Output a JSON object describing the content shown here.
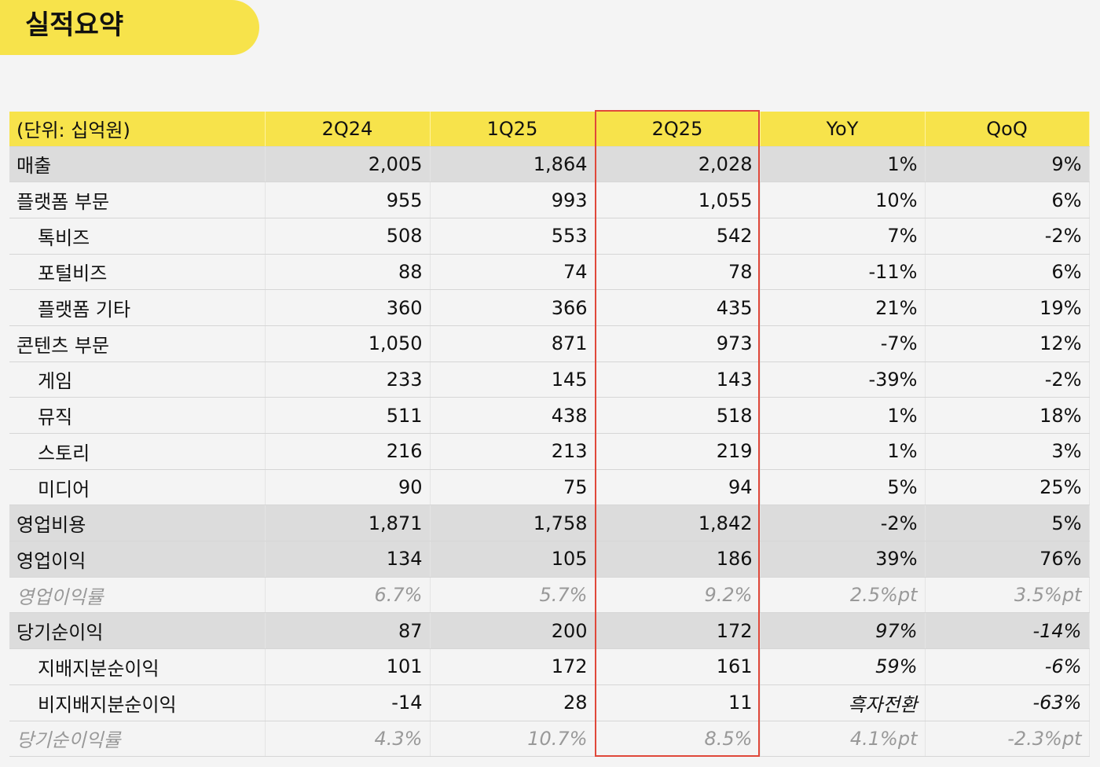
{
  "title": "실적요약",
  "table": {
    "header": [
      "(단위: 십억원)",
      "2Q24",
      "1Q25",
      "2Q25",
      "YoY",
      "QoQ"
    ],
    "rows": [
      [
        "매출",
        "2,005",
        "1,864",
        "2,028",
        "1%",
        "9%"
      ],
      [
        "플랫폼 부문",
        "955",
        "993",
        "1,055",
        "10%",
        "6%"
      ],
      [
        "톡비즈",
        "508",
        "553",
        "542",
        "7%",
        "-2%"
      ],
      [
        "포털비즈",
        "88",
        "74",
        "78",
        "-11%",
        "6%"
      ],
      [
        "플랫폼 기타",
        "360",
        "366",
        "435",
        "21%",
        "19%"
      ],
      [
        "콘텐츠 부문",
        "1,050",
        "871",
        "973",
        "-7%",
        "12%"
      ],
      [
        "게임",
        "233",
        "145",
        "143",
        "-39%",
        "-2%"
      ],
      [
        "뮤직",
        "511",
        "438",
        "518",
        "1%",
        "18%"
      ],
      [
        "스토리",
        "216",
        "213",
        "219",
        "1%",
        "3%"
      ],
      [
        "미디어",
        "90",
        "75",
        "94",
        "5%",
        "25%"
      ],
      [
        "영업비용",
        "1,871",
        "1,758",
        "1,842",
        "-2%",
        "5%"
      ],
      [
        "영업이익",
        "134",
        "105",
        "186",
        "39%",
        "76%"
      ],
      [
        "영업이익률",
        "6.7%",
        "5.7%",
        "9.2%",
        "2.5%pt",
        "3.5%pt"
      ],
      [
        "당기순이익",
        "87",
        "200",
        "172",
        "97%",
        "-14%"
      ],
      [
        "지배지분순이익",
        "101",
        "172",
        "161",
        "59%",
        "-6%"
      ],
      [
        "비지배지분순이익",
        "-14",
        "28",
        "11",
        "흑자전환",
        "-63%"
      ],
      [
        "당기순이익률",
        "4.3%",
        "10.7%",
        "8.5%",
        "4.1%pt",
        "-2.3%pt"
      ]
    ]
  }
}
